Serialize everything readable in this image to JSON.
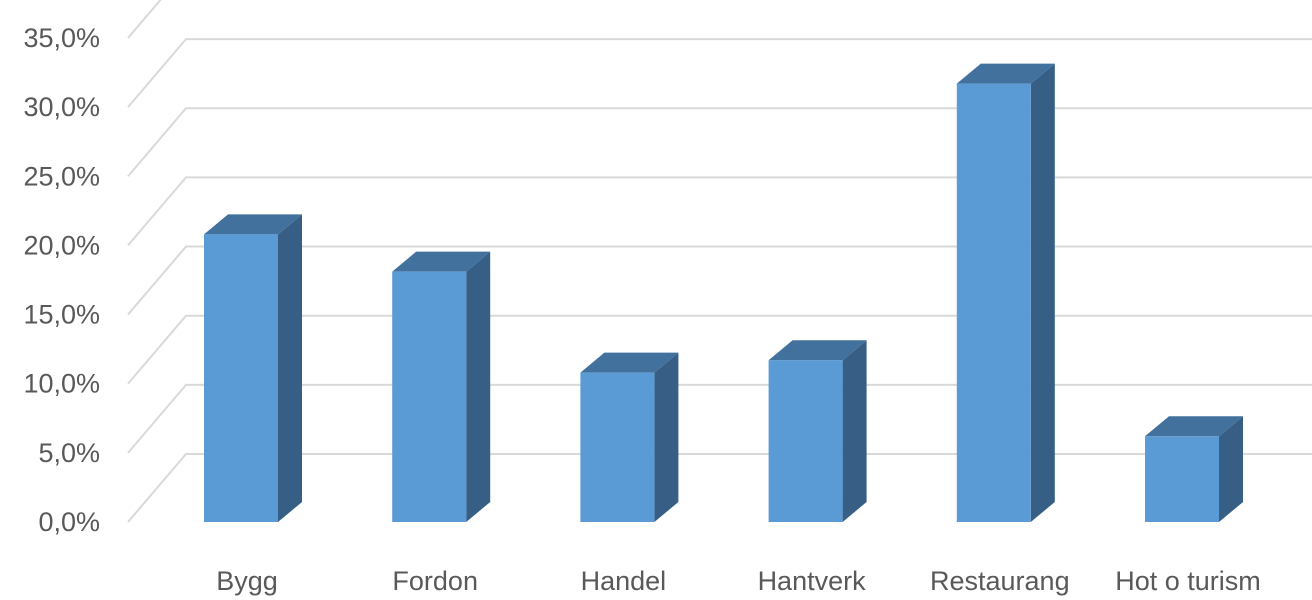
{
  "chart_data": {
    "type": "bar",
    "title": "",
    "xlabel": "",
    "ylabel": "",
    "categories": [
      "Bygg",
      "Fordon",
      "Handel",
      "Hantverk",
      "Restaurang",
      "Hot o turism"
    ],
    "values": [
      20.8,
      18.1,
      10.8,
      11.7,
      31.7,
      6.2
    ],
    "ylim": [
      0,
      35
    ],
    "y_ticks": [
      "0,0%",
      "5,0%",
      "10,0%",
      "15,0%",
      "20,0%",
      "25,0%",
      "30,0%",
      "35,0%"
    ],
    "grid": true,
    "legend": "none",
    "style": "3d-column",
    "colors": {
      "front": "#5b9bd5",
      "top": "#41719c",
      "side": "#375f86",
      "gridline": "#d9d9d9",
      "text": "#595959"
    }
  }
}
